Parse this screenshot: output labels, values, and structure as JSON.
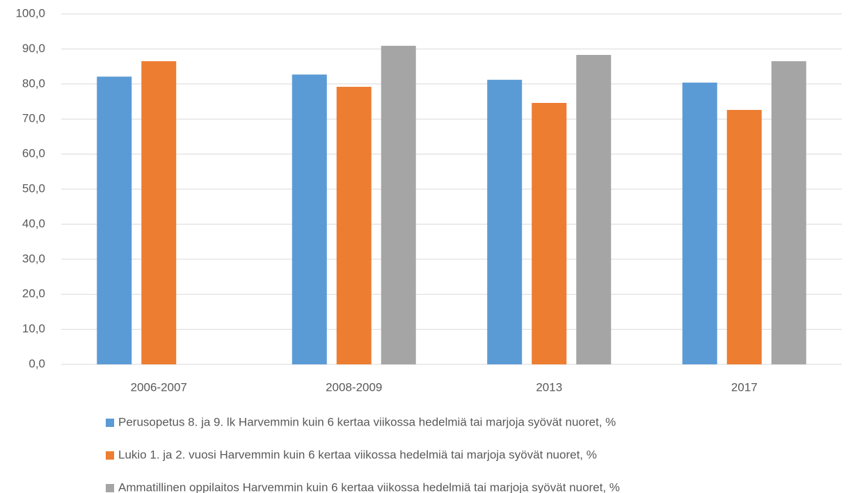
{
  "chart_data": {
    "type": "bar",
    "categories": [
      "2006-2007",
      "2008-2009",
      "2013",
      "2017"
    ],
    "series": [
      {
        "name": "Perusopetus 8. ja 9. lk Harvemmin kuin 6 kertaa viikossa hedelmiä tai marjoja syövät nuoret, %",
        "color": "#5b9bd5",
        "values": [
          82.1,
          82.7,
          81.2,
          80.4
        ]
      },
      {
        "name": "Lukio 1. ja 2. vuosi Harvemmin kuin 6 kertaa viikossa hedelmiä tai marjoja syövät nuoret, %",
        "color": "#ed7d31",
        "values": [
          86.5,
          79.2,
          74.6,
          72.6
        ]
      },
      {
        "name": "Ammatillinen oppilaitos Harvemmin kuin 6 kertaa viikossa hedelmiä tai marjoja syövät nuoret, %",
        "color": "#a5a5a5",
        "values": [
          null,
          90.9,
          88.3,
          86.5
        ]
      }
    ],
    "ylim": [
      0,
      100
    ],
    "yticks": [
      {
        "value": 0,
        "label": "0,0"
      },
      {
        "value": 10,
        "label": "10,0"
      },
      {
        "value": 20,
        "label": "20,0"
      },
      {
        "value": 30,
        "label": "30,0"
      },
      {
        "value": 40,
        "label": "40,0"
      },
      {
        "value": 50,
        "label": "50,0"
      },
      {
        "value": 60,
        "label": "60,0"
      },
      {
        "value": 70,
        "label": "70,0"
      },
      {
        "value": 80,
        "label": "80,0"
      },
      {
        "value": 90,
        "label": "90,0"
      },
      {
        "value": 100,
        "label": "100,0"
      }
    ],
    "grid": true,
    "legend": "bottom"
  }
}
